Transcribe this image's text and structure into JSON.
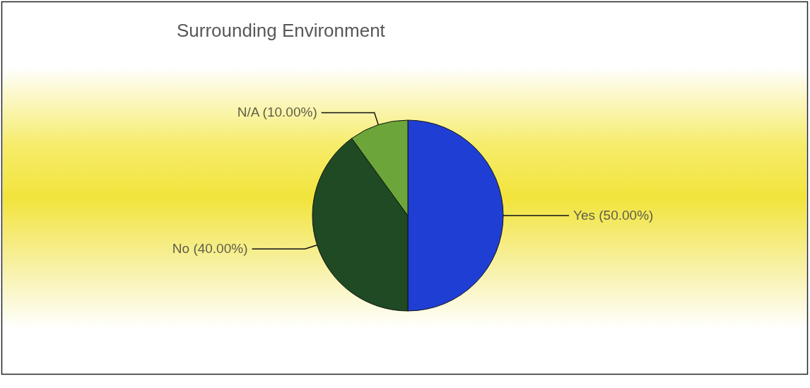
{
  "chart_data": {
    "type": "pie",
    "title": "Surrounding Environment",
    "categories": [
      "Yes",
      "No",
      "N/A"
    ],
    "values": [
      50,
      40,
      10
    ],
    "colors": [
      "#1f3fd4",
      "#1f4a24",
      "#6ca63a"
    ],
    "value_labels": [
      "(50.00%)",
      "(40.00%)",
      "(10.00%)"
    ]
  }
}
